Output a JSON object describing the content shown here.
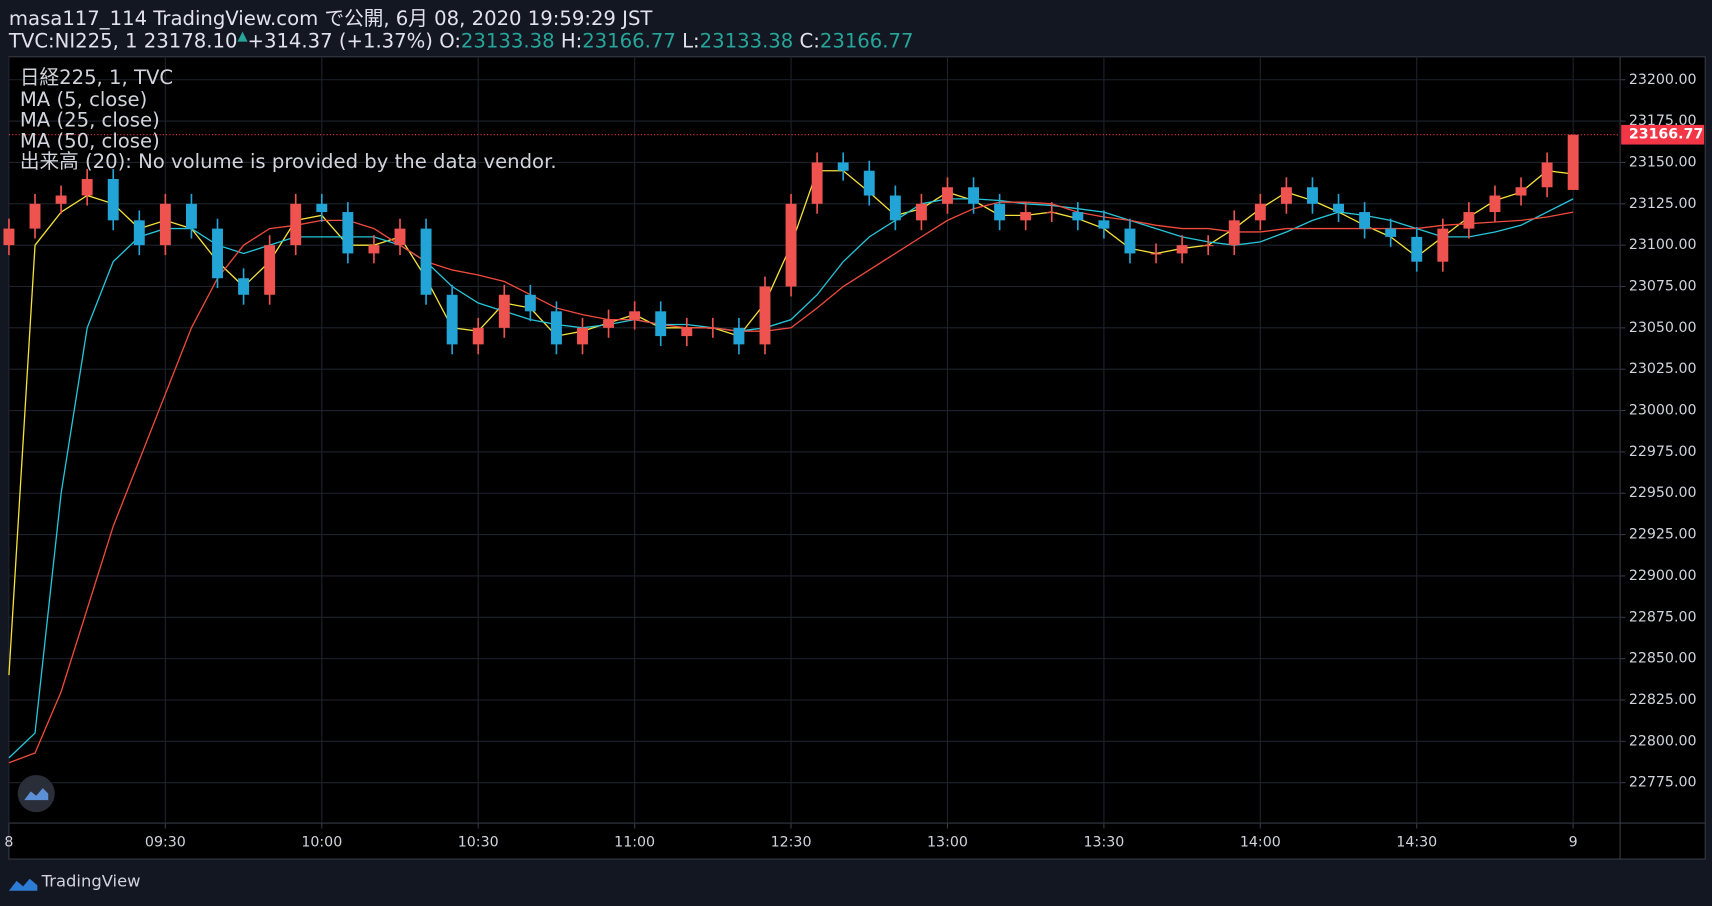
{
  "header": {
    "line1": "masa117_114 TradingView.com で公開, 6月 08, 2020 19:59:29 JST",
    "symbol": "TVC:NI225, 1",
    "price": "23178.10",
    "change": "+314.37 (+1.37%)",
    "o_label": "O:",
    "o_value": "23133.38",
    "h_label": "H:",
    "h_value": "23166.77",
    "l_label": "L:",
    "l_value": "23133.38",
    "c_label": "C:",
    "c_value": "23166.77"
  },
  "legend": [
    "日経225, 1, TVC",
    "MA (5, close)",
    "MA (25, close)",
    "MA (50, close)",
    "出来高 (20): No volume is provided by the data vendor."
  ],
  "footer": "TradingView",
  "chart_data": {
    "type": "candlestick",
    "up_color": "#ef5350",
    "down_color": "#22a5d6",
    "grid": true,
    "last_price": 23166.77,
    "last_price_color": "#f23645",
    "x": [
      0,
      5,
      10,
      15,
      20,
      25,
      30,
      35,
      40,
      45,
      50,
      55,
      60,
      65,
      70,
      75,
      80,
      85,
      90,
      95,
      100,
      105,
      110,
      115,
      120,
      125,
      130,
      135,
      140,
      145,
      150,
      155,
      160,
      165,
      170,
      175,
      180,
      185,
      190,
      195,
      200,
      205,
      210,
      215,
      220,
      225,
      230,
      235,
      240,
      245,
      250,
      255,
      260,
      265,
      270,
      275,
      280,
      285,
      290,
      295,
      300
    ],
    "open": [
      23100,
      23110,
      23125,
      23130,
      23140,
      23115,
      23100,
      23125,
      23110,
      23080,
      23070,
      23100,
      23125,
      23120,
      23095,
      23100,
      23110,
      23070,
      23040,
      23050,
      23070,
      23060,
      23040,
      23050,
      23055,
      23060,
      23045,
      23050,
      23050,
      23040,
      23075,
      23125,
      23150,
      23145,
      23130,
      23115,
      23125,
      23135,
      23125,
      23115,
      23120,
      23120,
      23115,
      23110,
      23095,
      23095,
      23100,
      23100,
      23115,
      23125,
      23135,
      23125,
      23120,
      23110,
      23105,
      23090,
      23110,
      23120,
      23130,
      23135,
      23133.38
    ],
    "high": [
      23116,
      23131,
      23136,
      23146,
      23146,
      23121,
      23131,
      23131,
      23116,
      23086,
      23106,
      23131,
      23131,
      23126,
      23106,
      23116,
      23116,
      23076,
      23056,
      23076,
      23076,
      23066,
      23056,
      23061,
      23066,
      23066,
      23056,
      23056,
      23056,
      23081,
      23131,
      23156,
      23156,
      23151,
      23136,
      23131,
      23141,
      23141,
      23131,
      23126,
      23126,
      23126,
      23121,
      23116,
      23101,
      23106,
      23106,
      23121,
      23131,
      23141,
      23141,
      23131,
      23126,
      23116,
      23111,
      23116,
      23126,
      23136,
      23141,
      23156,
      23166.77
    ],
    "low": [
      23094,
      23104,
      23119,
      23124,
      23109,
      23094,
      23094,
      23104,
      23074,
      23064,
      23064,
      23094,
      23114,
      23089,
      23089,
      23094,
      23064,
      23034,
      23034,
      23044,
      23054,
      23034,
      23034,
      23044,
      23049,
      23039,
      23039,
      23044,
      23034,
      23034,
      23069,
      23119,
      23139,
      23124,
      23109,
      23109,
      23119,
      23119,
      23109,
      23109,
      23114,
      23109,
      23104,
      23089,
      23089,
      23089,
      23094,
      23094,
      23109,
      23119,
      23119,
      23114,
      23104,
      23099,
      23084,
      23084,
      23104,
      23114,
      23124,
      23129,
      23133.38
    ],
    "close": [
      23110,
      23125,
      23130,
      23140,
      23115,
      23100,
      23125,
      23110,
      23080,
      23070,
      23100,
      23125,
      23120,
      23095,
      23100,
      23110,
      23070,
      23040,
      23050,
      23070,
      23060,
      23040,
      23050,
      23055,
      23060,
      23045,
      23050,
      23050,
      23040,
      23075,
      23125,
      23150,
      23145,
      23130,
      23115,
      23125,
      23135,
      23125,
      23115,
      23120,
      23120,
      23115,
      23110,
      23095,
      23095,
      23100,
      23100,
      23115,
      23125,
      23135,
      23125,
      23120,
      23110,
      23105,
      23090,
      23110,
      23120,
      23130,
      23135,
      23150,
      23166.77
    ],
    "series": [
      {
        "color": "#f5e23a",
        "values": [
          22840,
          23100,
          23120,
          23130,
          23125,
          23110,
          23115,
          23110,
          23090,
          23075,
          23090,
          23115,
          23118,
          23100,
          23100,
          23105,
          23080,
          23050,
          23048,
          23065,
          23062,
          23045,
          23048,
          23053,
          23058,
          23050,
          23050,
          23050,
          23045,
          23065,
          23100,
          23145,
          23145,
          23132,
          23118,
          23122,
          23132,
          23127,
          23118,
          23118,
          23120,
          23116,
          23110,
          23098,
          23095,
          23098,
          23100,
          23110,
          23122,
          23132,
          23127,
          23120,
          23112,
          23105,
          23093,
          23105,
          23117,
          23127,
          23132,
          23145,
          23143
        ]
      },
      {
        "color": "#26c6da",
        "values": [
          22790,
          22805,
          22950,
          23050,
          23090,
          23105,
          23110,
          23110,
          23100,
          23095,
          23100,
          23105,
          23105,
          23105,
          23105,
          23100,
          23090,
          23075,
          23065,
          23060,
          23055,
          23052,
          23050,
          23052,
          23055,
          23052,
          23052,
          23050,
          23048,
          23050,
          23055,
          23070,
          23090,
          23105,
          23115,
          23125,
          23128,
          23128,
          23127,
          23125,
          23124,
          23122,
          23120,
          23115,
          23110,
          23105,
          23102,
          23100,
          23102,
          23108,
          23115,
          23120,
          23118,
          23115,
          23110,
          23105,
          23105,
          23108,
          23112,
          23120,
          23128
        ]
      },
      {
        "color": "#ef4b3c",
        "values": [
          22787,
          22793,
          22830,
          22880,
          22930,
          22970,
          23010,
          23050,
          23080,
          23100,
          23110,
          23112,
          23115,
          23115,
          23110,
          23100,
          23090,
          23085,
          23082,
          23078,
          23070,
          23062,
          23058,
          23055,
          23055,
          23052,
          23050,
          23050,
          23048,
          23048,
          23050,
          23062,
          23075,
          23085,
          23095,
          23105,
          23115,
          23122,
          23126,
          23126,
          23125,
          23120,
          23117,
          23115,
          23112,
          23110,
          23110,
          23108,
          23108,
          23110,
          23110,
          23110,
          23110,
          23110,
          23110,
          23112,
          23113,
          23114,
          23115,
          23117,
          23120
        ]
      }
    ],
    "xlim": [
      0,
      309
    ],
    "xticks": [
      {
        "value": 0,
        "label": "8"
      },
      {
        "value": 30,
        "label": "09:30"
      },
      {
        "value": 60,
        "label": "10:00"
      },
      {
        "value": 90,
        "label": "10:30"
      },
      {
        "value": 120,
        "label": "11:00"
      },
      {
        "value": 150,
        "label": "12:30"
      },
      {
        "value": 180,
        "label": "13:00"
      },
      {
        "value": 210,
        "label": "13:30"
      },
      {
        "value": 240,
        "label": "14:00"
      },
      {
        "value": 270,
        "label": "14:30"
      },
      {
        "value": 300,
        "label": "9"
      }
    ],
    "ylim": [
      22750.6,
      23213.9
    ],
    "yticks": [
      {
        "value": 22775,
        "label": "22775.00"
      },
      {
        "value": 22800,
        "label": "22800.00"
      },
      {
        "value": 22825,
        "label": "22825.00"
      },
      {
        "value": 22850,
        "label": "22850.00"
      },
      {
        "value": 22875,
        "label": "22875.00"
      },
      {
        "value": 22900,
        "label": "22900.00"
      },
      {
        "value": 22925,
        "label": "22925.00"
      },
      {
        "value": 22950,
        "label": "22950.00"
      },
      {
        "value": 22975,
        "label": "22975.00"
      },
      {
        "value": 23000,
        "label": "23000.00"
      },
      {
        "value": 23025,
        "label": "23025.00"
      },
      {
        "value": 23050,
        "label": "23050.00"
      },
      {
        "value": 23075,
        "label": "23075.00"
      },
      {
        "value": 23100,
        "label": "23100.00"
      },
      {
        "value": 23125,
        "label": "23125.00"
      },
      {
        "value": 23150,
        "label": "23150.00"
      },
      {
        "value": 23175,
        "label": "23175.00"
      },
      {
        "value": 23200,
        "label": "23200.00"
      }
    ]
  }
}
